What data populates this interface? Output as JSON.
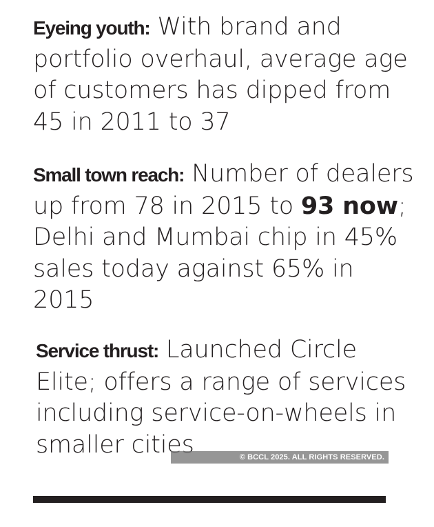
{
  "blocks": [
    {
      "label": "Eyeing youth:",
      "text": " With brand and portfolio overhaul, average age of customers has dipped from 45 in 2011 to 37"
    },
    {
      "label": "Small town reach:",
      "text_before": " Number of dealers up from 78 in 2015 to ",
      "emphasis": "93 now",
      "text_after": "; Delhi and Mumbai chip in 45% sales today against 65% in 2015"
    },
    {
      "label": "Service thrust:",
      "text": " Launched Circle Elite; offers a range of services including service-on-wheels in smaller cities"
    }
  ],
  "watermark": "© BCCL 2025. ALL RIGHTS RESERVED."
}
